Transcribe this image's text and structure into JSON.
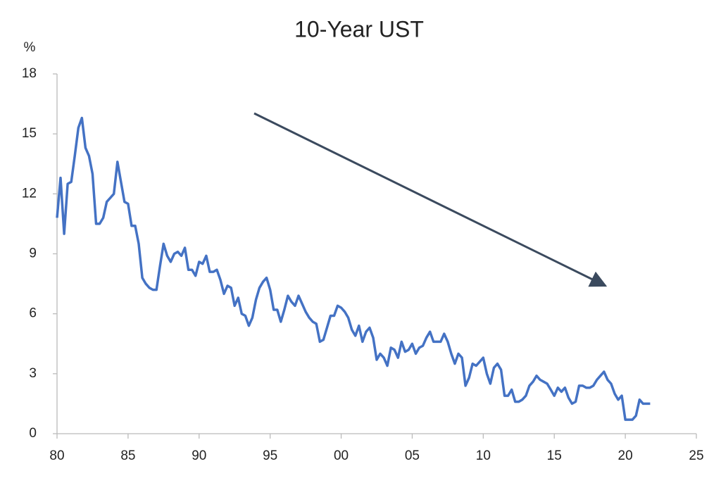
{
  "chart_data": {
    "type": "line",
    "title": "10-Year UST",
    "y_label": "%",
    "xlim": [
      1980,
      2025
    ],
    "xticks": [
      {
        "value": 1980,
        "label": "80"
      },
      {
        "value": 1985,
        "label": "85"
      },
      {
        "value": 1990,
        "label": "90"
      },
      {
        "value": 1995,
        "label": "95"
      },
      {
        "value": 2000,
        "label": "00"
      },
      {
        "value": 2005,
        "label": "05"
      },
      {
        "value": 2010,
        "label": "10"
      },
      {
        "value": 2015,
        "label": "15"
      },
      {
        "value": 2020,
        "label": "20"
      },
      {
        "value": 2025,
        "label": "25"
      }
    ],
    "ylim": [
      0,
      18
    ],
    "yticks": [
      0,
      3,
      6,
      9,
      12,
      15,
      18
    ],
    "x": [
      1980,
      1980.25,
      1980.5,
      1980.75,
      1981,
      1981.25,
      1981.5,
      1981.75,
      1982,
      1982.25,
      1982.5,
      1982.75,
      1983,
      1983.25,
      1983.5,
      1983.75,
      1984,
      1984.25,
      1984.5,
      1984.75,
      1985,
      1985.25,
      1985.5,
      1985.75,
      1986,
      1986.25,
      1986.5,
      1986.75,
      1987,
      1987.25,
      1987.5,
      1987.75,
      1988,
      1988.25,
      1988.5,
      1988.75,
      1989,
      1989.25,
      1989.5,
      1989.75,
      1990,
      1990.25,
      1990.5,
      1990.75,
      1991,
      1991.25,
      1991.5,
      1991.75,
      1992,
      1992.25,
      1992.5,
      1992.75,
      1993,
      1993.25,
      1993.5,
      1993.75,
      1994,
      1994.25,
      1994.5,
      1994.75,
      1995,
      1995.25,
      1995.5,
      1995.75,
      1996,
      1996.25,
      1996.5,
      1996.75,
      1997,
      1997.25,
      1997.5,
      1997.75,
      1998,
      1998.25,
      1998.5,
      1998.75,
      1999,
      1999.25,
      1999.5,
      1999.75,
      2000,
      2000.25,
      2000.5,
      2000.75,
      2001,
      2001.25,
      2001.5,
      2001.75,
      2002,
      2002.25,
      2002.5,
      2002.75,
      2003,
      2003.25,
      2003.5,
      2003.75,
      2004,
      2004.25,
      2004.5,
      2004.75,
      2005,
      2005.25,
      2005.5,
      2005.75,
      2006,
      2006.25,
      2006.5,
      2006.75,
      2007,
      2007.25,
      2007.5,
      2007.75,
      2008,
      2008.25,
      2008.5,
      2008.75,
      2009,
      2009.25,
      2009.5,
      2009.75,
      2010,
      2010.25,
      2010.5,
      2010.75,
      2011,
      2011.25,
      2011.5,
      2011.75,
      2012,
      2012.25,
      2012.5,
      2012.75,
      2013,
      2013.25,
      2013.5,
      2013.75,
      2014,
      2014.25,
      2014.5,
      2014.75,
      2015,
      2015.25,
      2015.5,
      2015.75,
      2016,
      2016.25,
      2016.5,
      2016.75,
      2017,
      2017.25,
      2017.5,
      2017.75,
      2018,
      2018.25,
      2018.5,
      2018.75,
      2019,
      2019.25,
      2019.5,
      2019.75,
      2020,
      2020.25,
      2020.5,
      2020.75,
      2021,
      2021.25,
      2021.5,
      2021.75
    ],
    "series": [
      {
        "name": "10-Year UST",
        "color": "#4472c4",
        "values": [
          10.8,
          12.8,
          10.0,
          12.5,
          12.6,
          13.9,
          15.3,
          15.8,
          14.3,
          13.9,
          13.0,
          10.5,
          10.5,
          10.8,
          11.6,
          11.8,
          12.0,
          13.6,
          12.6,
          11.6,
          11.5,
          10.4,
          10.4,
          9.5,
          7.8,
          7.5,
          7.3,
          7.2,
          7.2,
          8.4,
          9.5,
          8.9,
          8.6,
          9.0,
          9.1,
          8.9,
          9.3,
          8.2,
          8.2,
          7.9,
          8.6,
          8.5,
          8.9,
          8.1,
          8.1,
          8.2,
          7.7,
          7.0,
          7.4,
          7.3,
          6.4,
          6.8,
          6.0,
          5.9,
          5.4,
          5.8,
          6.7,
          7.3,
          7.6,
          7.8,
          7.2,
          6.2,
          6.2,
          5.6,
          6.2,
          6.9,
          6.6,
          6.4,
          6.9,
          6.5,
          6.1,
          5.8,
          5.6,
          5.5,
          4.6,
          4.7,
          5.3,
          5.9,
          5.9,
          6.4,
          6.3,
          6.1,
          5.8,
          5.2,
          4.9,
          5.4,
          4.6,
          5.1,
          5.3,
          4.8,
          3.7,
          4.0,
          3.8,
          3.4,
          4.3,
          4.2,
          3.8,
          4.6,
          4.1,
          4.2,
          4.5,
          4.0,
          4.3,
          4.4,
          4.8,
          5.1,
          4.6,
          4.6,
          4.6,
          5.0,
          4.6,
          4.0,
          3.5,
          4.0,
          3.8,
          2.4,
          2.8,
          3.5,
          3.4,
          3.6,
          3.8,
          3.0,
          2.5,
          3.3,
          3.5,
          3.2,
          1.9,
          1.9,
          2.2,
          1.6,
          1.6,
          1.7,
          1.9,
          2.4,
          2.6,
          2.9,
          2.7,
          2.6,
          2.5,
          2.2,
          1.9,
          2.3,
          2.1,
          2.3,
          1.8,
          1.5,
          1.6,
          2.4,
          2.4,
          2.3,
          2.3,
          2.4,
          2.7,
          2.9,
          3.1,
          2.7,
          2.5,
          2.0,
          1.7,
          1.9,
          0.7,
          0.7,
          0.7,
          0.9,
          1.7,
          1.5,
          1.5,
          1.5
        ]
      }
    ]
  }
}
